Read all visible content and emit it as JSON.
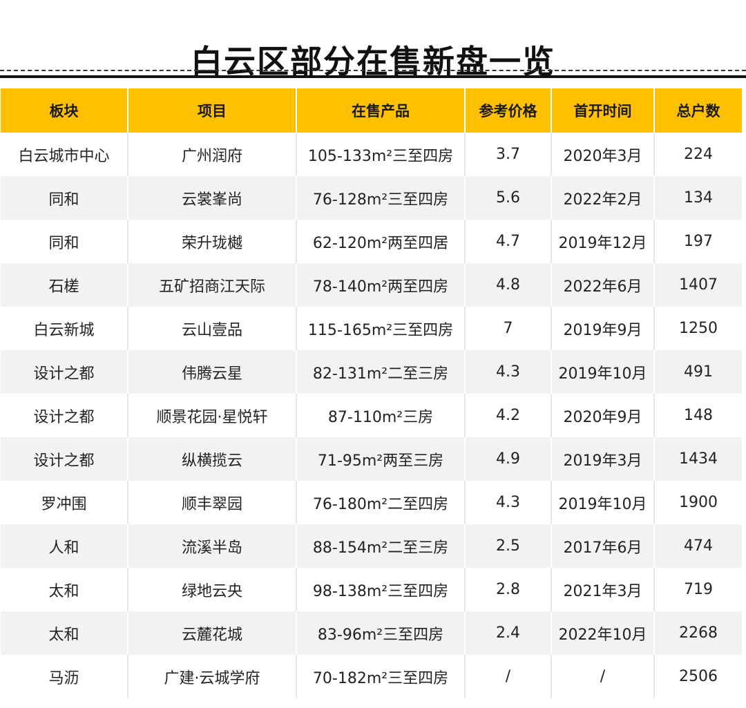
{
  "title": "白云区部分在售新盘一览",
  "table": {
    "headers": [
      "板块",
      "项目",
      "在售产品",
      "参考价格",
      "首开时间",
      "总户数"
    ],
    "rows": [
      [
        "白云城市中心",
        "广州润府",
        "105-133m²三至四房",
        "3.7",
        "2020年3月",
        "224"
      ],
      [
        "同和",
        "云裳峯尚",
        "76-128m²三至四房",
        "5.6",
        "2022年2月",
        "134"
      ],
      [
        "同和",
        "荣升珑樾",
        "62-120m²两至四居",
        "4.7",
        "2019年12月",
        "197"
      ],
      [
        "石槎",
        "五矿招商江天际",
        "78-140m²两至四房",
        "4.8",
        "2022年6月",
        "1407"
      ],
      [
        "白云新城",
        "云山壹品",
        "115-165m²三至四房",
        "7",
        "2019年9月",
        "1250"
      ],
      [
        "设计之都",
        "伟腾云星",
        "82-131m²二至三房",
        "4.3",
        "2019年10月",
        "491"
      ],
      [
        "设计之都",
        "顺景花园·星悦轩",
        "87-110m²三房",
        "4.2",
        "2020年9月",
        "148"
      ],
      [
        "设计之都",
        "纵横揽云",
        "71-95m²两至三房",
        "4.9",
        "2019年3月",
        "1434"
      ],
      [
        "罗冲围",
        "顺丰翠园",
        "76-180m²二至四房",
        "4.3",
        "2019年10月",
        "1900"
      ],
      [
        "人和",
        "流溪半岛",
        "88-154m²二至三房",
        "2.5",
        "2017年6月",
        "474"
      ],
      [
        "太和",
        "绿地云央",
        "98-138m²三至四房",
        "2.8",
        "2021年3月",
        "719"
      ],
      [
        "太和",
        "云麓花城",
        "83-96m²三至四房",
        "2.4",
        "2022年10月",
        "2268"
      ],
      [
        "马沥",
        "广建·云城学府",
        "70-182m²三至四房",
        "/",
        "/",
        "2506"
      ]
    ]
  },
  "colors": {
    "header_bg": "#FFC000",
    "stripe_bg": "#f2f2f2"
  }
}
